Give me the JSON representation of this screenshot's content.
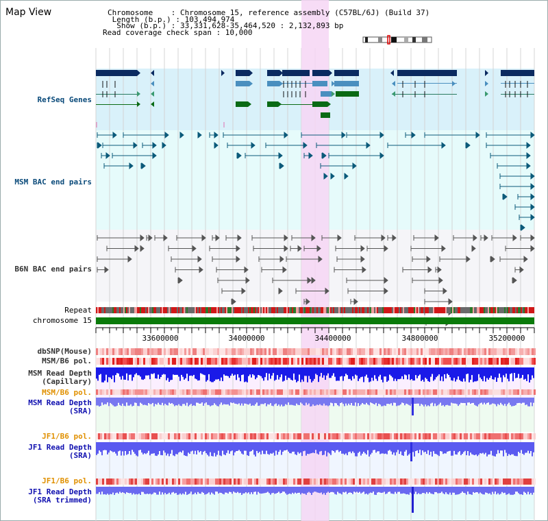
{
  "view_title": "Map View",
  "info": {
    "chromosome": "Chromosome    : Chromosome 15, reference assembly (C57BL/6J) (Build 37)",
    "length": " Length (b.p.) : 103,494,974",
    "show": "  Show (b.p.) : 33,331,628-35,464,520 : 2,132,893 bp",
    "span": "Read coverage check span : 10,000"
  },
  "tracks": {
    "refseq": "RefSeq Genes",
    "msm_bac": "MSM BAC end pairs",
    "b6n_bac": "B6N BAC end pairs",
    "repeat": "Repeat",
    "chromosome": "chromosome 15",
    "dbsnp": "dbSNP(Mouse)",
    "msm_pol": "MSM/B6 pol.",
    "msm_depth_cap_1": "MSM Read Depth",
    "msm_depth_cap_2": "(Capillary)",
    "msm_pol_2": "MSM/B6 pol.",
    "msm_depth_sra_1": "MSM Read Depth",
    "msm_depth_sra_2": "(SRA)",
    "jf1_pol": "JF1/B6 pol.",
    "jf1_depth_1": "JF1 Read Depth",
    "jf1_depth_2": "(SRA)",
    "jf1_pol_2": "JF1/B6 pol.",
    "jf1_trim_1": "JF1 Read Depth",
    "jf1_trim_2": "(SRA trimmed)"
  },
  "axis_ticks": [
    "33600000",
    "34000000",
    "34400000",
    "34800000",
    "35200000"
  ],
  "colors": {
    "gene_navy": "#0b2a60",
    "gene_blue": "#4a8fbf",
    "gene_green": "#0a6a14",
    "msm_teal": "#0b5a7a",
    "b6n_gray": "#555555",
    "depth_blue": "#2020e0",
    "highlight": "#f6d6f4",
    "label_navy": "#0a4a7a",
    "label_orange": "#e09000",
    "label_blue": "#1010b0"
  }
}
